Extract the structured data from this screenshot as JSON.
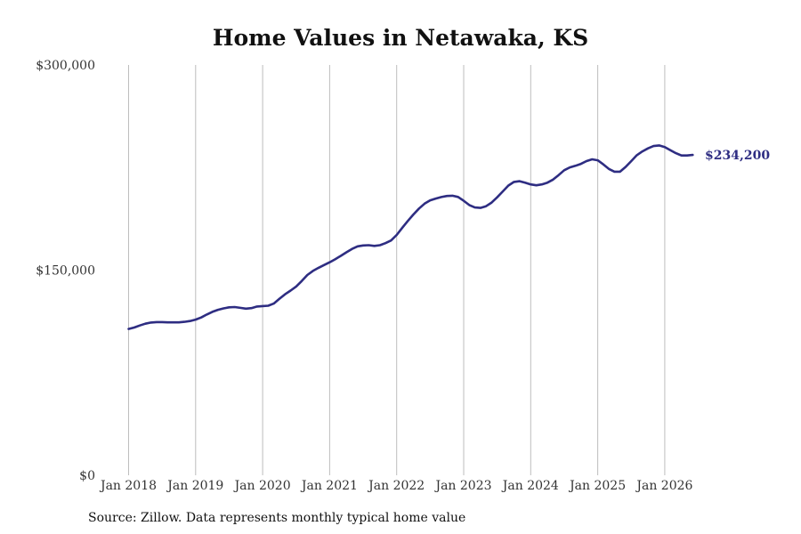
{
  "chart_data": {
    "type": "line",
    "title": "Home Values in Netawaka, KS",
    "xlabel": "",
    "ylabel": "",
    "ylim": [
      0,
      300000
    ],
    "xlim": [
      "2018-01",
      "2026-09"
    ],
    "grid": {
      "vertical": true,
      "horizontal": false
    },
    "y_ticks": [
      {
        "value": 0,
        "label": "$0"
      },
      {
        "value": 150000,
        "label": "$150,000"
      },
      {
        "value": 300000,
        "label": "$300,000"
      }
    ],
    "x_ticks": [
      {
        "date": "2018-01",
        "label": "Jan 2018"
      },
      {
        "date": "2019-01",
        "label": "Jan 2019"
      },
      {
        "date": "2020-01",
        "label": "Jan 2020"
      },
      {
        "date": "2021-01",
        "label": "Jan 2021"
      },
      {
        "date": "2022-01",
        "label": "Jan 2022"
      },
      {
        "date": "2023-01",
        "label": "Jan 2023"
      },
      {
        "date": "2024-01",
        "label": "Jan 2024"
      },
      {
        "date": "2025-01",
        "label": "Jan 2025"
      },
      {
        "date": "2026-01",
        "label": "Jan 2026"
      }
    ],
    "series": [
      {
        "name": "",
        "color": "#2e2d82",
        "end_label": "$234,200",
        "points": [
          [
            "2018-01",
            107000
          ],
          [
            "2018-02",
            108000
          ],
          [
            "2018-03",
            109500
          ],
          [
            "2018-04",
            110800
          ],
          [
            "2018-05",
            111700
          ],
          [
            "2018-06",
            112000
          ],
          [
            "2018-07",
            112000
          ],
          [
            "2018-08",
            111800
          ],
          [
            "2018-09",
            111800
          ],
          [
            "2018-10",
            111800
          ],
          [
            "2018-11",
            112200
          ],
          [
            "2018-12",
            112800
          ],
          [
            "2019-01",
            113800
          ],
          [
            "2019-02",
            115400
          ],
          [
            "2019-03",
            117500
          ],
          [
            "2019-04",
            119500
          ],
          [
            "2019-05",
            121000
          ],
          [
            "2019-06",
            122000
          ],
          [
            "2019-07",
            122800
          ],
          [
            "2019-08",
            123000
          ],
          [
            "2019-09",
            122400
          ],
          [
            "2019-10",
            121800
          ],
          [
            "2019-11",
            122200
          ],
          [
            "2019-12",
            123400
          ],
          [
            "2020-01",
            123700
          ],
          [
            "2020-02",
            124000
          ],
          [
            "2020-03",
            125500
          ],
          [
            "2020-04",
            129000
          ],
          [
            "2020-05",
            132300
          ],
          [
            "2020-06",
            135000
          ],
          [
            "2020-07",
            138000
          ],
          [
            "2020-08",
            142000
          ],
          [
            "2020-09",
            146400
          ],
          [
            "2020-10",
            149400
          ],
          [
            "2020-11",
            151700
          ],
          [
            "2020-12",
            153700
          ],
          [
            "2021-01",
            155700
          ],
          [
            "2021-02",
            158000
          ],
          [
            "2021-03",
            160400
          ],
          [
            "2021-04",
            163000
          ],
          [
            "2021-05",
            165500
          ],
          [
            "2021-06",
            167400
          ],
          [
            "2021-07",
            168000
          ],
          [
            "2021-08",
            168200
          ],
          [
            "2021-09",
            167700
          ],
          [
            "2021-10",
            168200
          ],
          [
            "2021-11",
            169700
          ],
          [
            "2021-12",
            171700
          ],
          [
            "2022-01",
            175700
          ],
          [
            "2022-02",
            181000
          ],
          [
            "2022-03",
            186000
          ],
          [
            "2022-04",
            190700
          ],
          [
            "2022-05",
            195000
          ],
          [
            "2022-06",
            198600
          ],
          [
            "2022-07",
            201000
          ],
          [
            "2022-08",
            202300
          ],
          [
            "2022-09",
            203400
          ],
          [
            "2022-10",
            204200
          ],
          [
            "2022-11",
            204400
          ],
          [
            "2022-12",
            203500
          ],
          [
            "2023-01",
            200700
          ],
          [
            "2023-02",
            197600
          ],
          [
            "2023-03",
            195800
          ],
          [
            "2023-04",
            195500
          ],
          [
            "2023-05",
            196700
          ],
          [
            "2023-06",
            199400
          ],
          [
            "2023-07",
            203200
          ],
          [
            "2023-08",
            207500
          ],
          [
            "2023-09",
            211800
          ],
          [
            "2023-10",
            214500
          ],
          [
            "2023-11",
            215000
          ],
          [
            "2023-12",
            213900
          ],
          [
            "2024-01",
            212700
          ],
          [
            "2024-02",
            212000
          ],
          [
            "2024-03",
            212700
          ],
          [
            "2024-04",
            214000
          ],
          [
            "2024-05",
            216200
          ],
          [
            "2024-06",
            219500
          ],
          [
            "2024-07",
            223000
          ],
          [
            "2024-08",
            225100
          ],
          [
            "2024-09",
            226300
          ],
          [
            "2024-10",
            227700
          ],
          [
            "2024-11",
            229700
          ],
          [
            "2024-12",
            231000
          ],
          [
            "2025-01",
            230300
          ],
          [
            "2025-02",
            227300
          ],
          [
            "2025-03",
            224000
          ],
          [
            "2025-04",
            222000
          ],
          [
            "2025-05",
            222000
          ],
          [
            "2025-06",
            225500
          ],
          [
            "2025-07",
            229700
          ],
          [
            "2025-08",
            234000
          ],
          [
            "2025-09",
            236800
          ],
          [
            "2025-10",
            239000
          ],
          [
            "2025-11",
            240700
          ],
          [
            "2025-12",
            241200
          ],
          [
            "2026-01",
            240000
          ],
          [
            "2026-02",
            237700
          ],
          [
            "2026-03",
            235500
          ],
          [
            "2026-04",
            233800
          ],
          [
            "2026-05",
            233800
          ],
          [
            "2026-06",
            234200
          ]
        ]
      }
    ]
  },
  "source_note": "Source: Zillow. Data represents monthly typical home value"
}
